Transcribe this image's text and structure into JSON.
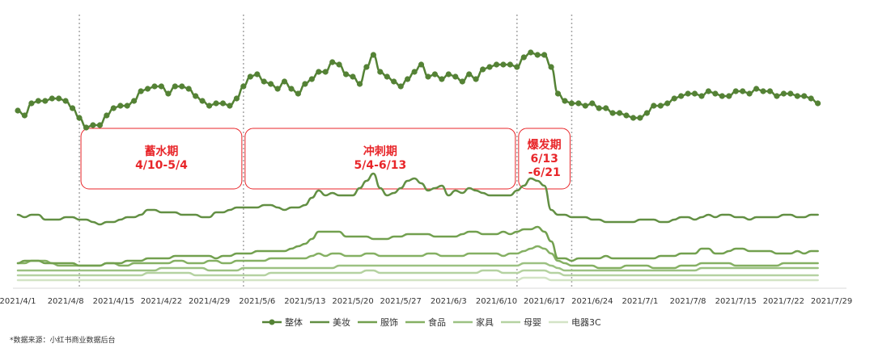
{
  "chart_data": {
    "type": "line",
    "xlabels": [
      "2021/4/1",
      "2021/4/8",
      "2021/4/15",
      "2021/4/22",
      "2021/4/29",
      "2021/5/6",
      "2021/5/13",
      "2021/5/20",
      "2021/5/27",
      "2021/6/3",
      "2021/6/10",
      "2021/6/17",
      "2021/6/24",
      "2021/7/1",
      "2021/7/8",
      "2021/7/15",
      "2021/7/22",
      "2021/7/29"
    ],
    "x_start": "2021/4/1",
    "x_end": "2021/7/31",
    "grid": false,
    "legend_position": "bottom",
    "phases": [
      {
        "label": "蓄水期",
        "range": "4/10-5/4",
        "start": "2021/4/10",
        "end": "2021/5/4"
      },
      {
        "label": "冲刺期",
        "range": "5/4-6/13",
        "start": "2021/5/4",
        "end": "2021/6/13"
      },
      {
        "label": "爆发期",
        "range_line1": "6/13",
        "range_line2": "-6/21",
        "start": "2021/6/13",
        "end": "2021/6/21"
      }
    ],
    "series": [
      {
        "name": "整体",
        "color": "#548235",
        "marker": true,
        "values": [
          73,
          71,
          76,
          77,
          77,
          78,
          78,
          77,
          74,
          70,
          66,
          67,
          67,
          71,
          74,
          75,
          75,
          77,
          81,
          82,
          83,
          83,
          80,
          83,
          83,
          82,
          79,
          77,
          75,
          76,
          76,
          75,
          78,
          83,
          87,
          88,
          85,
          84,
          82,
          85,
          82,
          80,
          84,
          86,
          89,
          89,
          93,
          92,
          88,
          87,
          84,
          91,
          96,
          89,
          87,
          85,
          83,
          86,
          89,
          92,
          87,
          88,
          86,
          88,
          87,
          85,
          88,
          86,
          90,
          91,
          92,
          92,
          92,
          91,
          95,
          97,
          96,
          96,
          91,
          80,
          77,
          76,
          76,
          75,
          76,
          74,
          74,
          72,
          72,
          71,
          70,
          70,
          72,
          75,
          75,
          76,
          78,
          79,
          80,
          80,
          79,
          81,
          80,
          79,
          79,
          81,
          81,
          80,
          82,
          81,
          81,
          79,
          80,
          80,
          79,
          79,
          78,
          76
        ]
      },
      {
        "name": "美妆",
        "color": "#628f43",
        "marker": false,
        "values": [
          30,
          29,
          30,
          30,
          28,
          28,
          28,
          29,
          29,
          28,
          28,
          27,
          26,
          27,
          27,
          28,
          29,
          29,
          30,
          32,
          32,
          31,
          31,
          31,
          30,
          30,
          30,
          29,
          29,
          31,
          31,
          32,
          33,
          33,
          33,
          33,
          34,
          34,
          33,
          32,
          33,
          33,
          34,
          37,
          40,
          38,
          39,
          38,
          38,
          38,
          41,
          44,
          47,
          41,
          38,
          39,
          41,
          44,
          45,
          43,
          40,
          41,
          42,
          38,
          40,
          39,
          41,
          40,
          39,
          38,
          38,
          38,
          38,
          40,
          42,
          45,
          44,
          42,
          32,
          30,
          30,
          29,
          29,
          29,
          28,
          28,
          27,
          27,
          27,
          27,
          27,
          28,
          28,
          28,
          27,
          27,
          28,
          29,
          29,
          28,
          29,
          30,
          29,
          30,
          30,
          29,
          29,
          28,
          29,
          29,
          29,
          29,
          30,
          30,
          29,
          29,
          30,
          30
        ]
      },
      {
        "name": "服饰",
        "color": "#72a04f",
        "marker": false,
        "values": [
          10,
          11,
          11,
          11,
          10,
          10,
          10,
          10,
          10,
          9,
          9,
          9,
          9,
          10,
          10,
          10,
          11,
          11,
          11,
          12,
          12,
          12,
          12,
          13,
          13,
          13,
          13,
          13,
          13,
          12,
          13,
          13,
          14,
          14,
          14,
          15,
          15,
          15,
          15,
          15,
          16,
          17,
          18,
          20,
          23,
          23,
          23,
          23,
          21,
          21,
          21,
          21,
          20,
          20,
          20,
          21,
          21,
          22,
          22,
          22,
          22,
          21,
          21,
          21,
          21,
          22,
          23,
          23,
          22,
          22,
          22,
          23,
          22,
          23,
          24,
          24,
          25,
          23,
          19,
          12,
          12,
          11,
          12,
          12,
          12,
          12,
          13,
          12,
          12,
          12,
          12,
          12,
          12,
          12,
          13,
          13,
          13,
          14,
          14,
          14,
          16,
          16,
          14,
          14,
          15,
          16,
          16,
          15,
          15,
          15,
          15,
          14,
          14,
          14,
          15,
          14,
          15,
          15
        ]
      },
      {
        "name": "食品",
        "color": "#85b063",
        "marker": false,
        "values": [
          10,
          10,
          11,
          11,
          11,
          10,
          9,
          9,
          9,
          9,
          9,
          9,
          9,
          10,
          10,
          9,
          9,
          10,
          10,
          10,
          10,
          10,
          10,
          11,
          11,
          10,
          10,
          10,
          11,
          11,
          10,
          10,
          11,
          11,
          11,
          11,
          11,
          12,
          12,
          12,
          12,
          12,
          12,
          13,
          14,
          13,
          14,
          14,
          13,
          13,
          13,
          14,
          14,
          13,
          13,
          13,
          13,
          13,
          13,
          13,
          14,
          14,
          13,
          13,
          13,
          13,
          14,
          14,
          14,
          14,
          14,
          13,
          14,
          14,
          15,
          16,
          17,
          16,
          14,
          11,
          10,
          9,
          9,
          9,
          9,
          8,
          8,
          8,
          8,
          9,
          9,
          9,
          9,
          8,
          8,
          8,
          8,
          9,
          9,
          9,
          10,
          10,
          10,
          10,
          10,
          9,
          9,
          9,
          9,
          9,
          9,
          9,
          10,
          10,
          10,
          10,
          10,
          10
        ]
      },
      {
        "name": "家具",
        "color": "#9cc182",
        "marker": false,
        "values": [
          7,
          7,
          7,
          7,
          7,
          7,
          7,
          7,
          7,
          7,
          7,
          7,
          7,
          7,
          7,
          7,
          7,
          7,
          7,
          7,
          7,
          8,
          8,
          8,
          8,
          8,
          8,
          8,
          7,
          7,
          7,
          7,
          7,
          8,
          8,
          8,
          8,
          8,
          8,
          8,
          8,
          8,
          8,
          8,
          8,
          8,
          8,
          9,
          9,
          9,
          9,
          9,
          9,
          9,
          9,
          9,
          9,
          9,
          9,
          9,
          9,
          9,
          9,
          9,
          9,
          9,
          9,
          9,
          9,
          9,
          9,
          9,
          9,
          9,
          10,
          10,
          10,
          10,
          9,
          8,
          7,
          7,
          7,
          7,
          7,
          7,
          7,
          7,
          7,
          7,
          7,
          7,
          7,
          7,
          7,
          7,
          7,
          7,
          7,
          7,
          8,
          8,
          8,
          8,
          8,
          8,
          8,
          8,
          8,
          8,
          8,
          8,
          8,
          8,
          8,
          8,
          8,
          8
        ]
      },
      {
        "name": "母婴",
        "color": "#b5d2a1",
        "marker": false,
        "values": [
          5,
          5,
          5,
          5,
          5,
          5,
          5,
          5,
          5,
          5,
          5,
          5,
          5,
          5,
          5,
          5,
          5,
          5,
          5,
          6,
          6,
          6,
          6,
          6,
          6,
          6,
          5,
          5,
          5,
          5,
          5,
          5,
          5,
          5,
          5,
          5,
          5,
          6,
          6,
          6,
          6,
          6,
          6,
          6,
          6,
          6,
          6,
          6,
          6,
          6,
          6,
          7,
          7,
          6,
          6,
          6,
          6,
          6,
          6,
          6,
          6,
          6,
          6,
          6,
          6,
          6,
          6,
          6,
          7,
          7,
          7,
          6,
          6,
          6,
          7,
          7,
          7,
          7,
          6,
          6,
          5,
          5,
          5,
          5,
          5,
          5,
          5,
          5,
          5,
          5,
          5,
          5,
          5,
          5,
          5,
          5,
          5,
          5,
          5,
          5,
          5,
          5,
          5,
          5,
          5,
          5,
          5,
          5,
          5,
          5,
          5,
          5,
          5,
          5,
          5,
          5,
          5,
          5
        ]
      },
      {
        "name": "电器3C",
        "color": "#d3e4c6",
        "marker": false,
        "values": [
          3,
          3,
          3,
          3,
          3,
          3,
          3,
          3,
          3,
          3,
          3,
          3,
          3,
          3,
          3,
          3,
          3,
          3,
          3,
          3,
          3,
          3,
          3,
          3,
          3,
          3,
          3,
          3,
          3,
          3,
          3,
          3,
          3,
          3,
          3,
          3,
          3,
          3,
          3,
          3,
          3,
          3,
          3,
          3,
          3,
          3,
          3,
          3,
          3,
          3,
          3,
          3,
          3,
          3,
          3,
          3,
          3,
          3,
          3,
          3,
          3,
          3,
          3,
          3,
          3,
          3,
          3,
          3,
          3,
          3,
          3,
          3,
          3,
          3,
          4,
          4,
          4,
          4,
          3,
          3,
          3,
          3,
          3,
          3,
          3,
          3,
          3,
          3,
          3,
          3,
          3,
          3,
          3,
          3,
          3,
          3,
          3,
          3,
          3,
          3,
          3,
          3,
          3,
          3,
          3,
          3,
          3,
          3,
          3,
          3,
          3,
          3,
          3,
          3,
          3,
          3,
          3,
          3
        ]
      }
    ]
  },
  "source_note": "*数据来源：小红书商业数据后台"
}
